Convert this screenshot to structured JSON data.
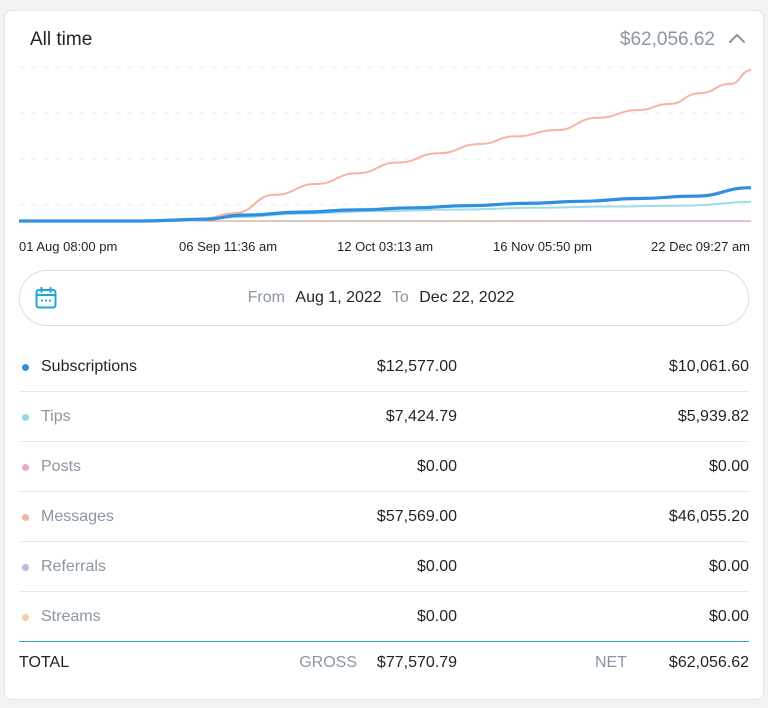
{
  "header": {
    "title": "All time",
    "total": "$62,056.62",
    "collapse_icon": "chevron-up-icon"
  },
  "chart_data": {
    "type": "line",
    "x_ticks": [
      "01 Aug 08:00 pm",
      "06 Sep 11:36 am",
      "12 Oct 03:13 am",
      "16 Nov 05:50 pm",
      "22 Dec 09:27 am"
    ],
    "x_range": [
      "2022-08-01",
      "2022-12-22"
    ],
    "ylim": [
      0,
      50000
    ],
    "grid": true,
    "series": [
      {
        "name": "Messages",
        "color": "#f7b3a2",
        "points": [
          [
            "2022-08-01",
            0
          ],
          [
            "2022-08-20",
            0
          ],
          [
            "2022-09-01",
            200
          ],
          [
            "2022-09-06",
            800
          ],
          [
            "2022-09-12",
            2500
          ],
          [
            "2022-09-20",
            8500
          ],
          [
            "2022-09-28",
            12000
          ],
          [
            "2022-10-06",
            15500
          ],
          [
            "2022-10-14",
            19000
          ],
          [
            "2022-10-22",
            22000
          ],
          [
            "2022-10-30",
            25000
          ],
          [
            "2022-11-06",
            27500
          ],
          [
            "2022-11-14",
            29500
          ],
          [
            "2022-11-22",
            33500
          ],
          [
            "2022-11-30",
            36000
          ],
          [
            "2022-12-06",
            38000
          ],
          [
            "2022-12-12",
            41500
          ],
          [
            "2022-12-18",
            44500
          ],
          [
            "2022-12-22",
            49000
          ]
        ]
      },
      {
        "name": "Subscriptions",
        "color": "#2f8fe0",
        "points": [
          [
            "2022-08-01",
            0
          ],
          [
            "2022-08-25",
            0
          ],
          [
            "2022-09-06",
            600
          ],
          [
            "2022-09-14",
            1900
          ],
          [
            "2022-09-25",
            2900
          ],
          [
            "2022-10-06",
            3600
          ],
          [
            "2022-10-17",
            4300
          ],
          [
            "2022-10-28",
            5000
          ],
          [
            "2022-11-08",
            5700
          ],
          [
            "2022-11-19",
            6400
          ],
          [
            "2022-11-30",
            7300
          ],
          [
            "2022-12-11",
            8100
          ],
          [
            "2022-12-22",
            10800
          ]
        ]
      },
      {
        "name": "Tips",
        "color": "#9edbe6",
        "points": [
          [
            "2022-08-01",
            0
          ],
          [
            "2022-09-01",
            0
          ],
          [
            "2022-09-12",
            1200
          ],
          [
            "2022-09-25",
            2400
          ],
          [
            "2022-10-10",
            3200
          ],
          [
            "2022-10-25",
            3700
          ],
          [
            "2022-11-10",
            4300
          ],
          [
            "2022-11-25",
            4700
          ],
          [
            "2022-12-10",
            5000
          ],
          [
            "2022-12-22",
            6200
          ]
        ]
      },
      {
        "name": "Posts",
        "color": "#c9a79a",
        "points": [
          [
            "2022-08-01",
            0
          ],
          [
            "2022-12-22",
            0
          ]
        ]
      }
    ]
  },
  "date_range": {
    "icon": "calendar-icon",
    "from_label": "From",
    "from_value": "Aug 1, 2022",
    "to_label": "To",
    "to_value": "Dec 22, 2022"
  },
  "rows": [
    {
      "label": "Subscriptions",
      "gross": "$12,577.00",
      "net": "$10,061.60",
      "dot_color": "#2f8fe0",
      "muted": false
    },
    {
      "label": "Tips",
      "gross": "$7,424.79",
      "net": "$5,939.82",
      "dot_color": "#8fd9e6",
      "muted": true
    },
    {
      "label": "Posts",
      "gross": "$0.00",
      "net": "$0.00",
      "dot_color": "#f4a7bb",
      "muted": true
    },
    {
      "label": "Messages",
      "gross": "$57,569.00",
      "net": "$46,055.20",
      "dot_color": "#f7b3a2",
      "muted": true
    },
    {
      "label": "Referrals",
      "gross": "$0.00",
      "net": "$0.00",
      "dot_color": "#c8b5e3",
      "muted": true
    },
    {
      "label": "Streams",
      "gross": "$0.00",
      "net": "$0.00",
      "dot_color": "#f5cf9c",
      "muted": true
    }
  ],
  "totals": {
    "label": "TOTAL",
    "gross_label": "GROSS",
    "gross_value": "$77,570.79",
    "net_label": "NET",
    "net_value": "$62,056.62"
  },
  "colors": {
    "muted_text": "#8a96a3",
    "accent_line": "#2aa3c8"
  }
}
